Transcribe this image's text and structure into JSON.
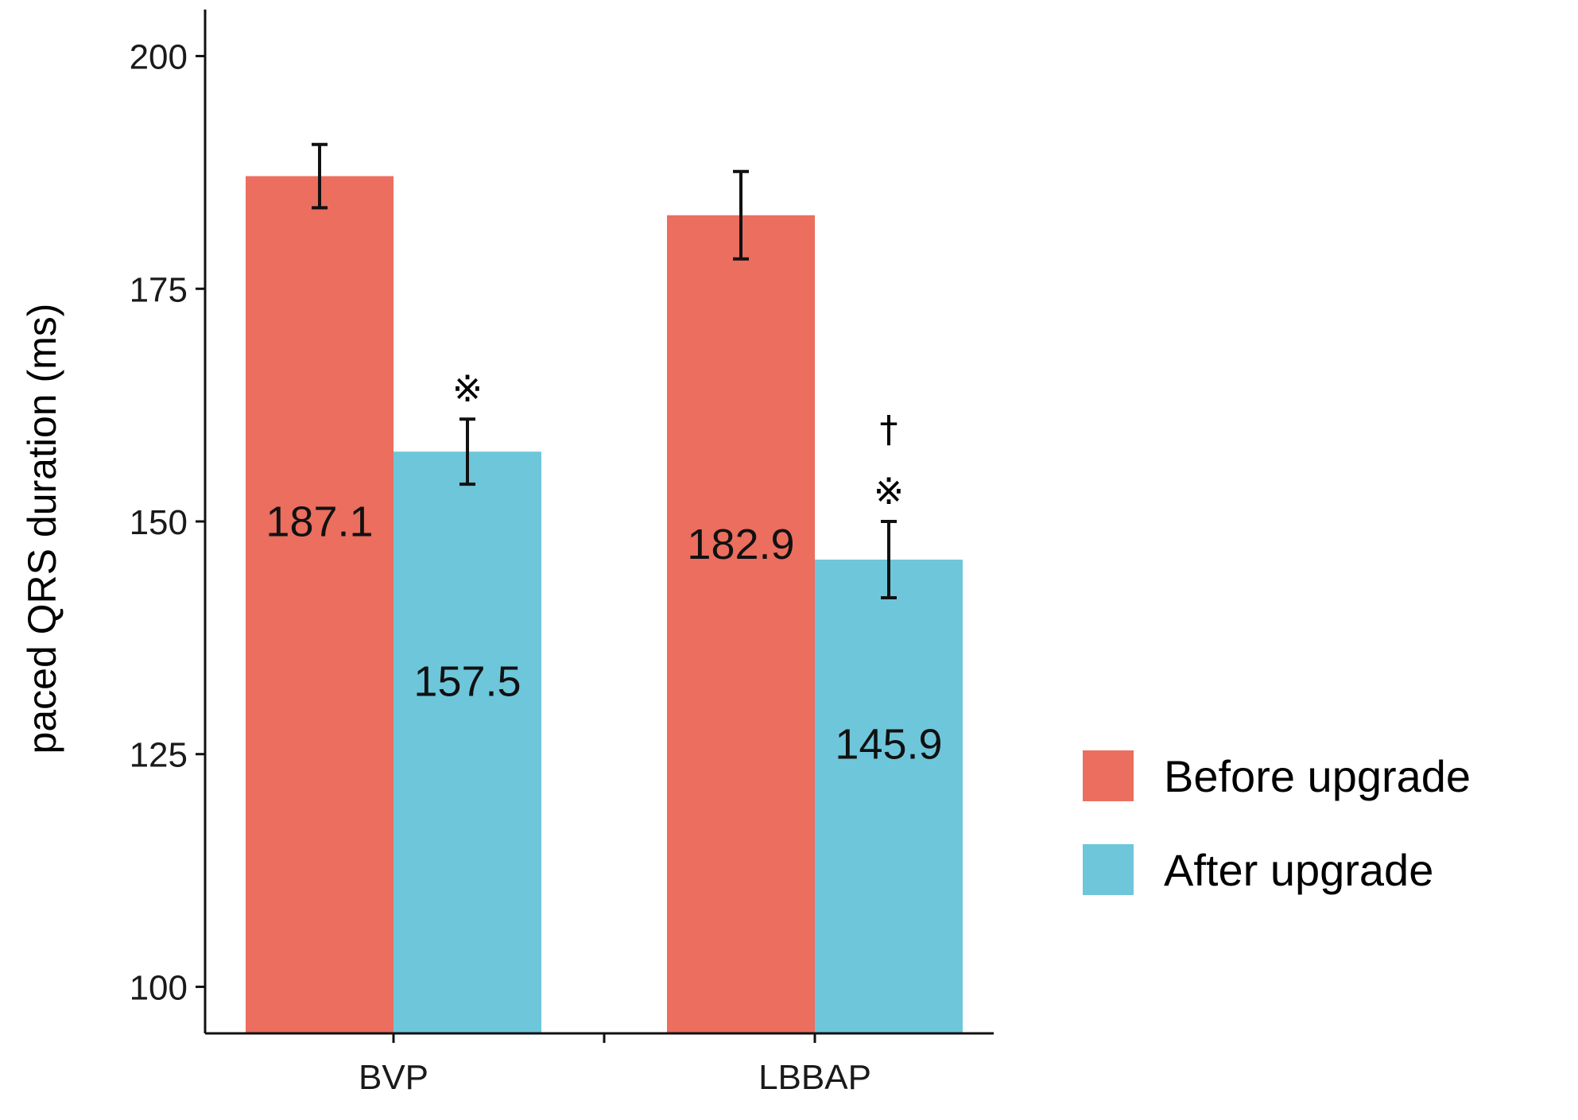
{
  "chart_data": {
    "type": "bar",
    "categories": [
      "BVP",
      "LBBAP"
    ],
    "ylabel": "paced QRS duration (ms)",
    "xlabel": "",
    "ylim": [
      95,
      205
    ],
    "yticks": [
      100,
      125,
      150,
      175,
      200
    ],
    "grid": false,
    "legend_position": "right",
    "series": [
      {
        "name": "Before upgrade",
        "color": "#EB6E5E",
        "values": [
          187.1,
          182.9
        ],
        "error": [
          3.4,
          4.7
        ],
        "labels": [
          "187.1",
          "182.9"
        ]
      },
      {
        "name": "After upgrade",
        "color": "#6EC6DB",
        "values": [
          157.5,
          145.9
        ],
        "error": [
          3.5,
          4.1
        ],
        "labels": [
          "157.5",
          "145.9"
        ]
      }
    ],
    "annotations": [
      {
        "category": "BVP",
        "series": "After upgrade",
        "symbols": [
          "※"
        ]
      },
      {
        "category": "LBBAP",
        "series": "After upgrade",
        "symbols": [
          "†",
          "※"
        ]
      }
    ]
  }
}
